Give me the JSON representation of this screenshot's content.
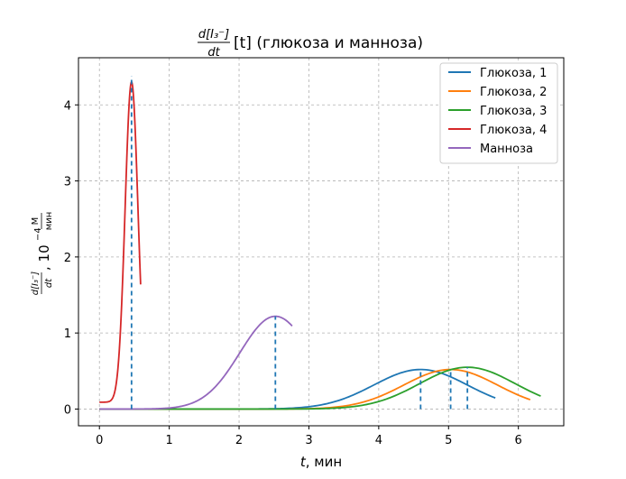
{
  "chart_data": {
    "type": "line",
    "title_fraction_numerator": "d[I₃⁻]",
    "title_fraction_denominator": "dt",
    "title_rest": "[t] (глюкоза и манноза)",
    "xlabel_italic": "t",
    "xlabel_rest": ", мин",
    "ylabel_fraction_numerator": "d[I₃⁻]",
    "ylabel_fraction_denominator": "dt",
    "ylabel_mid": ", 10",
    "ylabel_exponent": "−4",
    "ylabel_unit_numerator": "М",
    "ylabel_unit_denominator": "мин",
    "xlim": [
      -0.3,
      6.65
    ],
    "ylim": [
      -0.22,
      4.62
    ],
    "xticks": [
      0,
      1,
      2,
      3,
      4,
      5,
      6
    ],
    "yticks": [
      0,
      1,
      2,
      3,
      4
    ],
    "grid": true,
    "legend_position": "top-right",
    "peak_marker_color": "#1f77b4",
    "series": [
      {
        "name": "Глюкоза, 1",
        "color": "#1f77b4",
        "shape": "gaussian",
        "x_start": 0,
        "x_end": 5.67,
        "peak_x": 4.6,
        "peak_y": 0.52,
        "width": 0.95,
        "baseline": 0
      },
      {
        "name": "Глюкоза, 2",
        "color": "#ff7f0e",
        "shape": "gaussian",
        "x_start": 0,
        "x_end": 6.17,
        "peak_x": 5.03,
        "peak_y": 0.52,
        "width": 0.95,
        "baseline": 0
      },
      {
        "name": "Глюкоза, 3",
        "color": "#2ca02c",
        "shape": "gaussian",
        "x_start": 0,
        "x_end": 6.32,
        "peak_x": 5.27,
        "peak_y": 0.55,
        "width": 0.97,
        "baseline": 0
      },
      {
        "name": "Глюкоза, 4",
        "color": "#d62728",
        "shape": "gaussian",
        "x_start": 0,
        "x_end": 0.59,
        "peak_x": 0.46,
        "peak_y": 4.3,
        "width": 0.13,
        "baseline": 0.09
      },
      {
        "name": "Манноза",
        "color": "#9467bd",
        "shape": "gaussian",
        "x_start": 0,
        "x_end": 2.76,
        "peak_x": 2.52,
        "peak_y": 1.22,
        "width": 0.72,
        "baseline": 0
      }
    ],
    "peak_markers": [
      {
        "x": 0.46,
        "y": 4.38
      },
      {
        "x": 2.52,
        "y": 1.22
      },
      {
        "x": 4.6,
        "y": 0.52
      },
      {
        "x": 5.03,
        "y": 0.52
      },
      {
        "x": 5.27,
        "y": 0.55
      }
    ]
  }
}
